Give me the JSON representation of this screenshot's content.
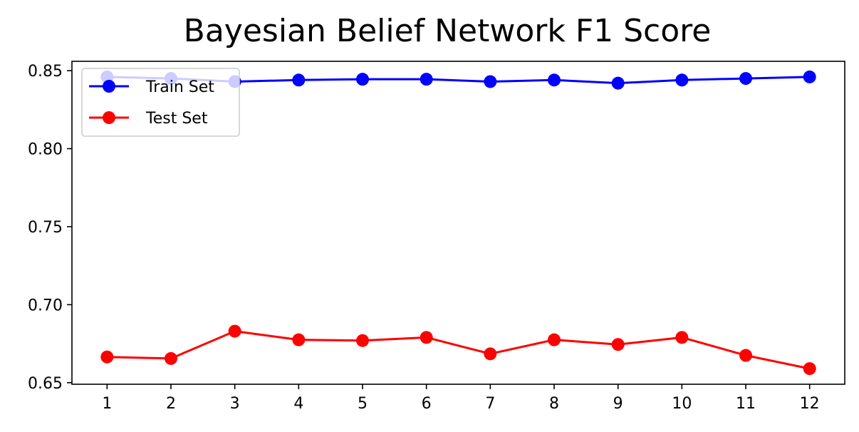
{
  "chart_data": {
    "type": "line",
    "title": "Bayesian Belief Network F1 Score",
    "xlabel": "",
    "ylabel": "",
    "x": [
      1,
      2,
      3,
      4,
      5,
      6,
      7,
      8,
      9,
      10,
      11,
      12
    ],
    "x_ticks": [
      "1",
      "2",
      "3",
      "4",
      "5",
      "6",
      "7",
      "8",
      "9",
      "10",
      "11",
      "12"
    ],
    "y_ticks": [
      "0.65",
      "0.70",
      "0.75",
      "0.80",
      "0.85"
    ],
    "xlim": [
      0.45,
      12.55
    ],
    "ylim": [
      0.649,
      0.856
    ],
    "grid": false,
    "legend_position": "top-left",
    "series": [
      {
        "name": "Train Set",
        "color": "#0000ff",
        "marker": "circle",
        "values": [
          0.846,
          0.845,
          0.843,
          0.844,
          0.8445,
          0.8445,
          0.843,
          0.844,
          0.842,
          0.844,
          0.845,
          0.846
        ]
      },
      {
        "name": "Test Set",
        "color": "#ff0000",
        "marker": "circle",
        "values": [
          0.6665,
          0.6655,
          0.683,
          0.6775,
          0.677,
          0.679,
          0.6685,
          0.6775,
          0.6745,
          0.679,
          0.6675,
          0.659
        ]
      }
    ]
  }
}
